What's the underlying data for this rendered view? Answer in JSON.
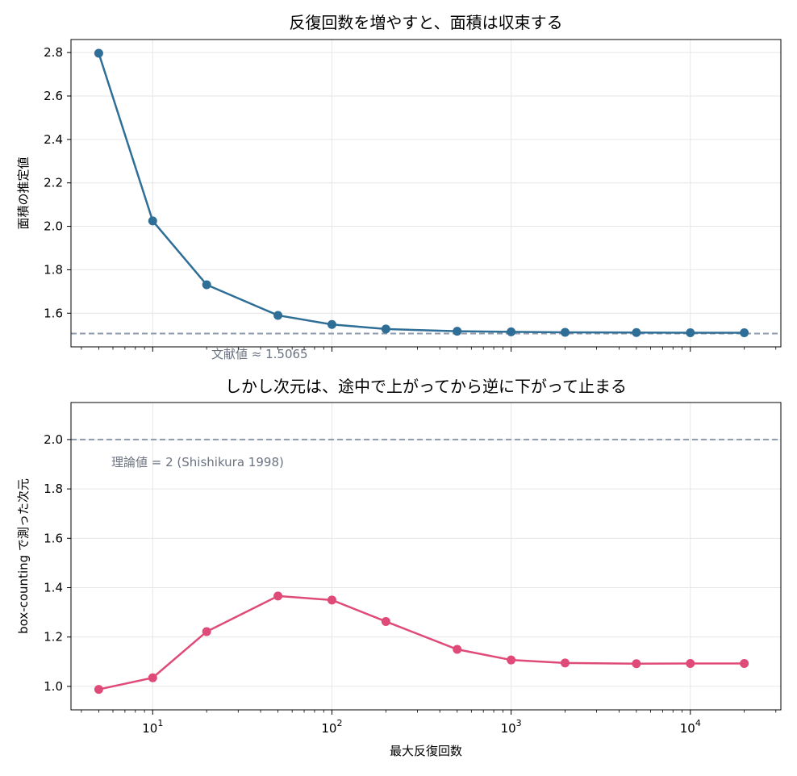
{
  "chart_data": [
    {
      "type": "line",
      "title": "反復回数を増やすと、面積は収束する",
      "xlabel": "",
      "ylabel": "面積の推定値",
      "xscale": "log",
      "xlim": [
        3.5,
        32000
      ],
      "ylim": [
        1.445,
        2.86
      ],
      "yticks": [
        "1.6",
        "1.8",
        "2.0",
        "2.2",
        "2.4",
        "2.6",
        "2.8"
      ],
      "grid": true,
      "color": "#2f6e96",
      "x": [
        5,
        10,
        20,
        50,
        100,
        200,
        500,
        1000,
        2000,
        5000,
        10000,
        20000
      ],
      "y": [
        2.797,
        2.025,
        1.731,
        1.59,
        1.548,
        1.527,
        1.517,
        1.514,
        1.512,
        1.511,
        1.51,
        1.51
      ],
      "reference": {
        "value": 1.5065,
        "label": "文献値 ≈ 1.5065",
        "color": "#8c9aab"
      }
    },
    {
      "type": "line",
      "title": "しかし次元は、途中で上がってから逆に下がって止まる",
      "xlabel": "最大反復回数",
      "ylabel": "box-counting で測った次元",
      "xscale": "log",
      "xlim": [
        3.5,
        32000
      ],
      "ylim": [
        0.905,
        2.15
      ],
      "yticks": [
        "1.0",
        "1.2",
        "1.4",
        "1.6",
        "1.8",
        "2.0"
      ],
      "xticks": [
        {
          "base": "10",
          "exp": "1"
        },
        {
          "base": "10",
          "exp": "2"
        },
        {
          "base": "10",
          "exp": "3"
        },
        {
          "base": "10",
          "exp": "4"
        }
      ],
      "grid": true,
      "color": "#e04a78",
      "x": [
        5,
        10,
        20,
        50,
        100,
        200,
        500,
        1000,
        2000,
        5000,
        10000,
        20000
      ],
      "y": [
        0.988,
        1.035,
        1.222,
        1.366,
        1.35,
        1.263,
        1.15,
        1.107,
        1.095,
        1.092,
        1.093,
        1.093
      ],
      "reference": {
        "value": 2.0,
        "label": "理論値 = 2 (Shishikura 1998)",
        "color": "#8c9aab"
      }
    }
  ]
}
